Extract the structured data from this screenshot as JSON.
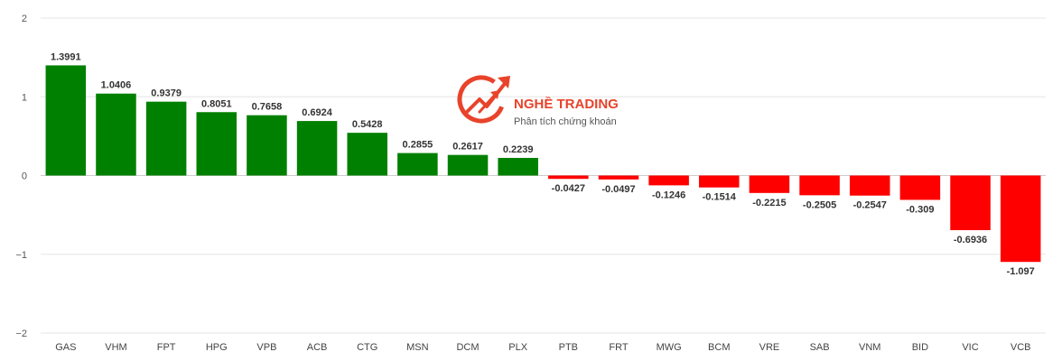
{
  "chart_data": {
    "type": "bar",
    "categories": [
      "GAS",
      "VHM",
      "FPT",
      "HPG",
      "VPB",
      "ACB",
      "CTG",
      "MSN",
      "DCM",
      "PLX",
      "PTB",
      "FRT",
      "MWG",
      "BCM",
      "VRE",
      "SAB",
      "VNM",
      "BID",
      "VIC",
      "VCB"
    ],
    "values": [
      1.3991,
      1.0406,
      0.9379,
      0.8051,
      0.7658,
      0.6924,
      0.5428,
      0.2855,
      0.2617,
      0.2239,
      -0.0427,
      -0.0497,
      -0.1246,
      -0.1514,
      -0.2215,
      -0.2505,
      -0.2547,
      -0.309,
      -0.6936,
      -1.097
    ],
    "value_labels": [
      "1.3991",
      "1.0406",
      "0.9379",
      "0.8051",
      "0.7658",
      "0.6924",
      "0.5428",
      "0.2855",
      "0.2617",
      "0.2239",
      "-0.0427",
      "-0.0497",
      "-0.1246",
      "-0.1514",
      "-0.2215",
      "-0.2505",
      "-0.2547",
      "-0.309",
      "-0.6936",
      "-1.097"
    ],
    "title": "",
    "xlabel": "",
    "ylabel": "",
    "ylim": [
      -2,
      2
    ],
    "yticks": [
      2,
      1,
      0,
      -1,
      -2
    ],
    "ytick_labels": [
      "2",
      "1",
      "0",
      "−1",
      "−2"
    ],
    "grid": true,
    "colors": {
      "positive": "#008000",
      "negative": "#ff0000"
    }
  },
  "watermark": {
    "brand": "NGHỀ TRADING",
    "tagline": "Phân tích chứng khoán",
    "color": "#e8432b"
  }
}
